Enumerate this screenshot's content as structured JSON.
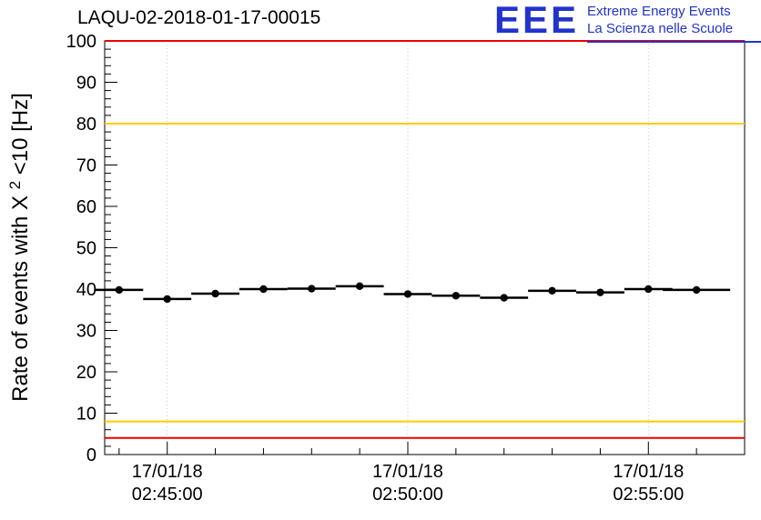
{
  "logo": {
    "big": "EEE",
    "line1": "Extreme Energy Events",
    "line2": "La Scienza nelle Scuole",
    "color": "#2233cc"
  },
  "chart_data": {
    "type": "scatter",
    "title": "LAQU-02-2018-01-17-00015",
    "ylabel_prefix": "Rate of events with X",
    "ylabel_sup": "2",
    "ylabel_suffix": "<10 [Hz]",
    "ylim": [
      0,
      100
    ],
    "y_major_step": 10,
    "y_minor_step": 2,
    "y_tick_labels": [
      "0",
      "10",
      "20",
      "30",
      "40",
      "50",
      "60",
      "70",
      "80",
      "90",
      "100"
    ],
    "xlim_minutes": [
      43.7,
      57.0
    ],
    "x_minor_step_minutes": 1,
    "x_major_ticks": [
      {
        "minute": 45,
        "line1": "17/01/18",
        "line2": "02:45:00"
      },
      {
        "minute": 50,
        "line1": "17/01/18",
        "line2": "02:50:00"
      },
      {
        "minute": 55,
        "line1": "17/01/18",
        "line2": "02:55:00"
      }
    ],
    "hlines": [
      {
        "y": 100,
        "color": "#ee0000",
        "width": 2
      },
      {
        "y": 80,
        "color": "#ffcc00",
        "width": 2
      },
      {
        "y": 8,
        "color": "#ffcc00",
        "width": 2
      },
      {
        "y": 4,
        "color": "#ee0000",
        "width": 2
      }
    ],
    "points": [
      {
        "minute": 44,
        "rate": 39.8,
        "xerr": 0.5
      },
      {
        "minute": 45,
        "rate": 37.6,
        "xerr": 0.5
      },
      {
        "minute": 46,
        "rate": 38.9,
        "xerr": 0.5
      },
      {
        "minute": 47,
        "rate": 40.0,
        "xerr": 0.5
      },
      {
        "minute": 48,
        "rate": 40.1,
        "xerr": 0.5
      },
      {
        "minute": 49,
        "rate": 40.7,
        "xerr": 0.5
      },
      {
        "minute": 50,
        "rate": 38.8,
        "xerr": 0.5
      },
      {
        "minute": 51,
        "rate": 38.4,
        "xerr": 0.5
      },
      {
        "minute": 52,
        "rate": 37.9,
        "xerr": 0.5
      },
      {
        "minute": 53,
        "rate": 39.6,
        "xerr": 0.5
      },
      {
        "minute": 54,
        "rate": 39.2,
        "xerr": 0.5
      },
      {
        "minute": 55,
        "rate": 40.0,
        "xerr": 0.5
      },
      {
        "minute": 56,
        "rate": 39.8,
        "xerr": 0.7
      }
    ],
    "marker_color": "#000000",
    "grid_color": "#c9c9c9",
    "legend_position": "none",
    "grid": "vertical-dotted-at-major-ticks"
  }
}
